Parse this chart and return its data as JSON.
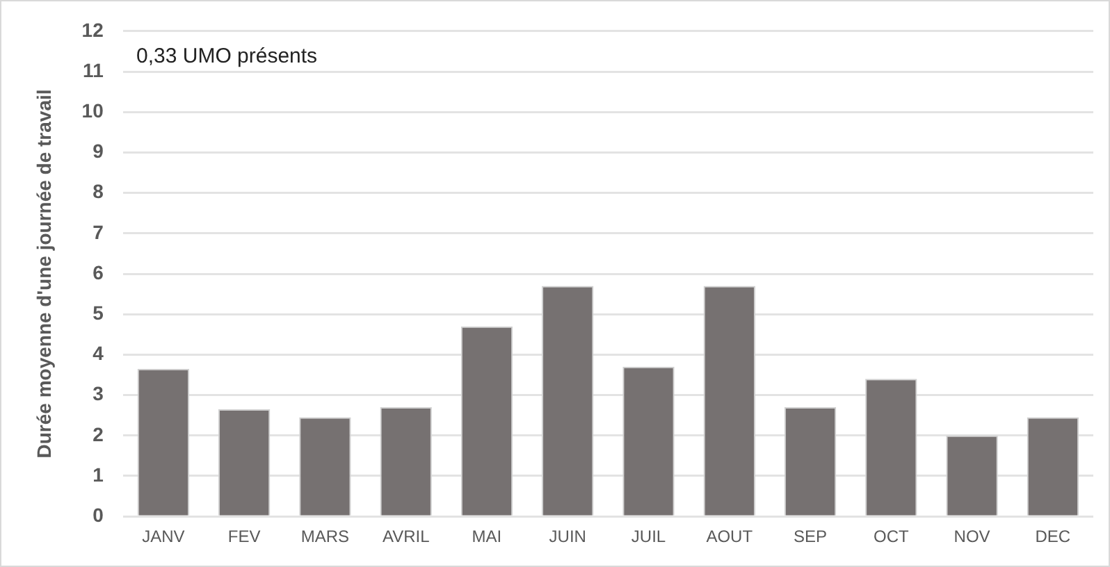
{
  "chart_data": {
    "type": "bar",
    "ylabel": "Durée moyenne d'une journée de travail",
    "annotations": [
      "0,33 UMO présents"
    ],
    "categories": [
      "JANV",
      "FEV",
      "MARS",
      "AVRIL",
      "MAI",
      "JUIN",
      "JUIL",
      "AOUT",
      "SEP",
      "OCT",
      "NOV",
      "DEC"
    ],
    "values": [
      3.65,
      2.65,
      2.45,
      2.7,
      4.7,
      5.7,
      3.7,
      5.7,
      2.7,
      3.4,
      2.0,
      2.45
    ],
    "color": "#767171",
    "ylim": [
      0,
      12
    ],
    "yticks": [
      0,
      1,
      2,
      3,
      4,
      5,
      6,
      7,
      8,
      9,
      10,
      11,
      12
    ],
    "grid": "y",
    "legend": false
  }
}
